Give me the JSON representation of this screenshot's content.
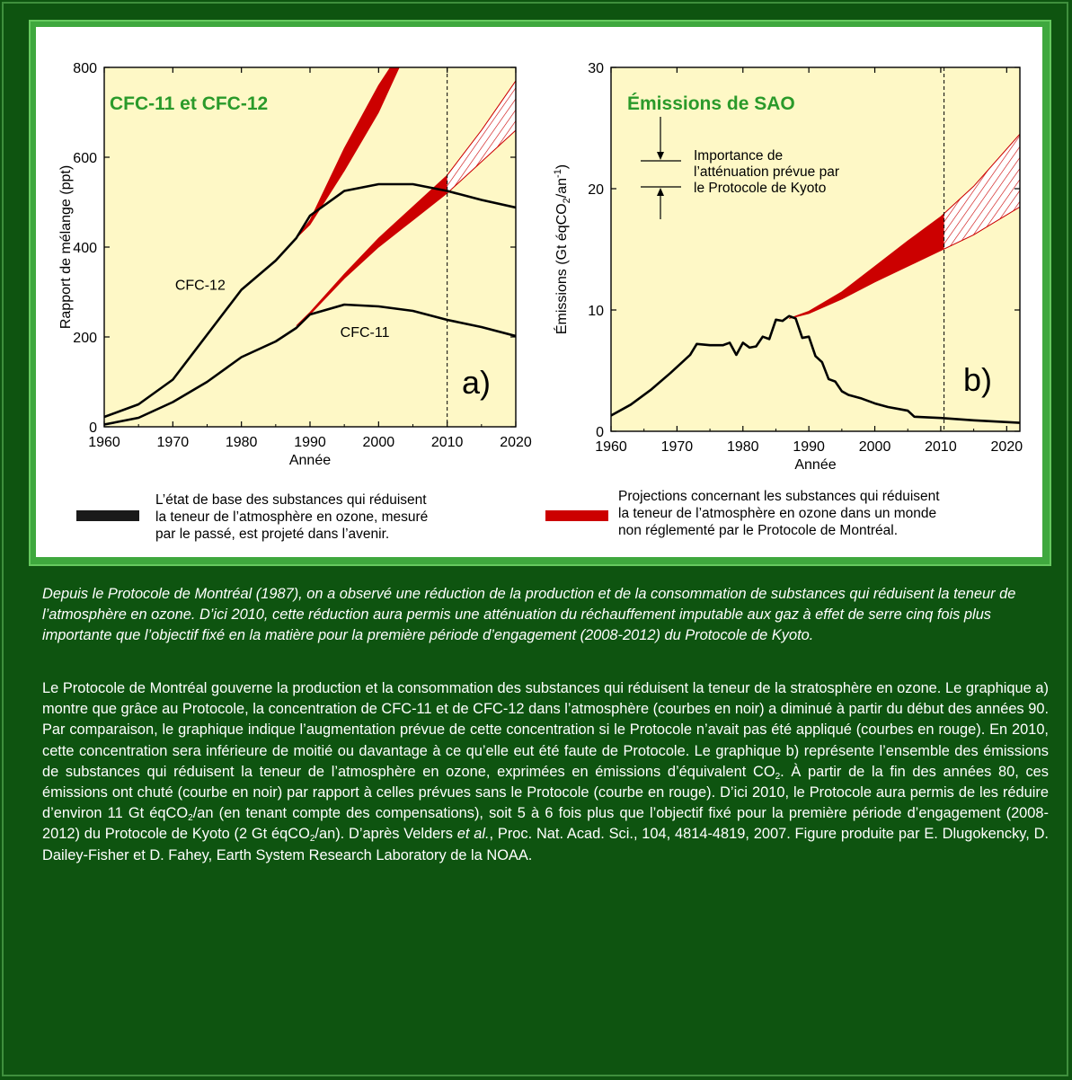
{
  "legend": {
    "baseline_text": [
      "L’état de base des substances qui réduisent",
      "la teneur de l’atmosphère en ozone, mesuré",
      "par le passé, est projeté dans l’avenir."
    ],
    "unregulated_text": [
      "Projections concernant les substances qui réduisent",
      "la teneur de l’atmosphère en ozone dans un monde",
      "non réglementé par le Protocole de Montréal."
    ],
    "baseline_color": "#1a1a1a",
    "unregulated_color": "#cc0000"
  },
  "kyoto_annotation": [
    "Importance de",
    "l’atténuation prévue par",
    "le Protocole de Kyoto"
  ],
  "caption": "Depuis le Protocole de Montréal (1987), on a observé une réduction de la production et de la consommation de substances qui réduisent la teneur de l’atmosphère en ozone. D’ici 2010, cette réduction aura permis une atténuation du réchauffement imputable aux gaz à effet de serre cinq fois plus importante que l’objectif fixé en la matière pour la première période d’engagement (2008-2012) du Protocole de Kyoto.",
  "body": {
    "p1": "Le Protocole de Montréal gouverne la production et la consommation des substances qui réduisent la teneur de la stratosphère en ozone. Le graphique a) montre que grâce au Protocole, la concentration de CFC-11 et de CFC-12 dans l’atmosphère (courbes en noir) a diminué à partir du début des années 90. Par comparaison, le graphique indique l’augmentation prévue de cette concentration si le Protocole n’avait pas été appliqué (courbes en rouge). En 2010, cette concentration sera inférieure de moitié ou davantage à ce qu’elle eut été faute de Protocole. Le graphique b) représente l’ensemble des émissions de substances qui réduisent la teneur de l’atmosphère en ozone, exprimées en émissions d’équivalent CO",
    "sub1": "2",
    "p2": ". À partir de la fin des années 80, ces émissions ont chuté (courbe en noir) par rapport à celles prévues sans le Protocole (courbe en rouge). D’ici 2010, le Protocole aura permis de les réduire d’environ 11 Gt éqCO",
    "sub2": "2",
    "p3": "/an (en tenant compte des compensations), soit 5 à 6 fois plus que l’objectif fixé pour la première période d’engagement (2008-2012) du Protocole de Kyoto (2 Gt éqCO",
    "sub3": "2",
    "p4": "/an). D’après Velders ",
    "etal": "et al.",
    "p5": ", Proc. Nat. Acad. Sci., 104, 4814-4819, 2007. Figure produite par E. Dlugokencky, D. Dailey-Fisher et D. Fahey, Earth System Research Laboratory de la NOAA."
  },
  "chart_data": [
    {
      "type": "line",
      "panel_label": "a)",
      "title": "CFC-11 et CFC-12",
      "xlabel": "Année",
      "ylabel": "Rapport de mélange (ppt)",
      "xlim": [
        1960,
        2020
      ],
      "ylim": [
        0,
        800
      ],
      "xticks": [
        1960,
        1970,
        1980,
        1990,
        2000,
        2010,
        2020
      ],
      "yticks": [
        0,
        200,
        400,
        600,
        800
      ],
      "vline": 2010,
      "series_labels": [
        {
          "text": "CFC-12",
          "x": 1974,
          "y": 305
        },
        {
          "text": "CFC-11",
          "x": 1998,
          "y": 200
        }
      ],
      "series": [
        {
          "name": "CFC-12",
          "kind": "baseline",
          "x": [
            1960,
            1965,
            1970,
            1975,
            1980,
            1985,
            1988,
            1990,
            1995,
            2000,
            2005,
            2010,
            2015,
            2020
          ],
          "y": [
            22,
            50,
            105,
            205,
            305,
            370,
            420,
            470,
            525,
            540,
            540,
            525,
            505,
            488
          ]
        },
        {
          "name": "CFC-11",
          "kind": "baseline",
          "x": [
            1960,
            1965,
            1970,
            1975,
            1980,
            1985,
            1988,
            1990,
            1995,
            2000,
            2005,
            2010,
            2015,
            2020
          ],
          "y": [
            5,
            20,
            55,
            100,
            155,
            190,
            220,
            250,
            272,
            268,
            258,
            238,
            222,
            202
          ]
        },
        {
          "name": "CFC-12",
          "kind": "unregulated",
          "x": [
            1988,
            1990,
            1995,
            2000,
            2003
          ],
          "lower": [
            420,
            450,
            570,
            700,
            800
          ],
          "upper": [
            420,
            460,
            620,
            760,
            830
          ],
          "hatched_from": 2010
        },
        {
          "name": "CFC-11",
          "kind": "unregulated",
          "x": [
            1988,
            1990,
            1995,
            2000,
            2005,
            2010,
            2015,
            2020
          ],
          "lower": [
            225,
            250,
            330,
            400,
            460,
            520,
            590,
            660
          ],
          "upper": [
            225,
            255,
            340,
            420,
            490,
            560,
            660,
            770
          ],
          "hatched_from": 2010
        }
      ]
    },
    {
      "type": "line",
      "panel_label": "b)",
      "title": "Émissions de SAO",
      "xlabel": "Année",
      "ylabel": "Émissions (Gt  éqCO2/an-1)",
      "xlim": [
        1960,
        2022
      ],
      "ylim": [
        0,
        30
      ],
      "xticks": [
        1960,
        1970,
        1980,
        1990,
        2000,
        2010,
        2020
      ],
      "yticks": [
        0,
        10,
        20,
        30
      ],
      "vline": 2010.5,
      "series": [
        {
          "name": "SAO",
          "kind": "baseline",
          "x": [
            1960,
            1963,
            1966,
            1969,
            1972,
            1973,
            1975,
            1977,
            1978,
            1979,
            1980,
            1981,
            1982,
            1983,
            1984,
            1985,
            1986,
            1987,
            1988,
            1989,
            1990,
            1991,
            1992,
            1993,
            1994,
            1995,
            1996,
            1998,
            2000,
            2002,
            2004,
            2005,
            2006,
            2010,
            2015,
            2022
          ],
          "y": [
            1.3,
            2.2,
            3.4,
            4.8,
            6.3,
            7.2,
            7.1,
            7.1,
            7.3,
            6.3,
            7.3,
            6.9,
            7,
            7.8,
            7.6,
            9.2,
            9.1,
            9.5,
            9.3,
            7.7,
            7.8,
            6.2,
            5.7,
            4.3,
            4.1,
            3.3,
            3,
            2.7,
            2.3,
            2,
            1.8,
            1.7,
            1.2,
            1.1,
            0.9,
            0.7
          ]
        },
        {
          "name": "SAO",
          "kind": "unregulated",
          "x": [
            1987,
            1990,
            1995,
            2000,
            2005,
            2010,
            2015,
            2022
          ],
          "lower": [
            9.3,
            9.7,
            10.9,
            12.3,
            13.6,
            14.9,
            16.2,
            18.5
          ],
          "upper": [
            9.3,
            9.9,
            11.5,
            13.6,
            15.7,
            17.7,
            20.2,
            24.5
          ],
          "hatched_from": 2010.5
        }
      ]
    }
  ]
}
